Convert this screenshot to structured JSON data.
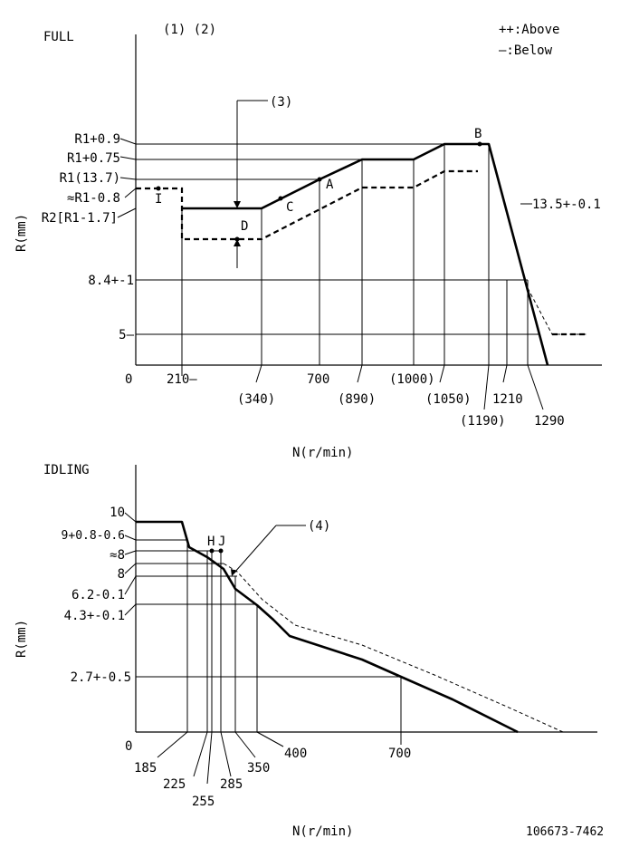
{
  "full": {
    "title": "FULL",
    "refs": "(1) (2)",
    "ref3": "(3)",
    "legend_above": "++:Above",
    "legend_below": "—:Below",
    "ylabel": "R(mm)",
    "xlabel": "N(r/min)",
    "y_labels": {
      "r1_09": "R1+0.9",
      "r1_075": "R1+0.75",
      "r1": "R1(13.7)",
      "r1_m08": "≈R1-0.8",
      "r2": "R2[R1-1.7]",
      "v84": "8.4+-1",
      "v5": "5—",
      "slope": "13.5+-0.1"
    },
    "x_labels": {
      "zero": "0",
      "x210": "210—",
      "x340": "(340)",
      "x700": "700",
      "x890": "(890)",
      "x1000": "(1000)",
      "x1050": "(1050)",
      "x1190": "(1190)",
      "x1210": "1210",
      "x1290": "1290"
    },
    "points": {
      "A": "A",
      "B": "B",
      "C": "C",
      "D": "D",
      "I": "I"
    }
  },
  "idling": {
    "title": "IDLING",
    "ref4": "(4)",
    "ylabel": "R(mm)",
    "xlabel": "N(r/min)",
    "y_labels": {
      "v10": "10",
      "v9": "9+0.8-0.6",
      "v8a": "≈8",
      "v8": "8",
      "v62": "6.2-0.1",
      "v43": "4.3+-0.1",
      "v27": "2.7+-0.5"
    },
    "x_labels": {
      "zero": "0",
      "x185": "185",
      "x225": "225",
      "x255": "255",
      "x285": "285",
      "x350": "350",
      "x400": "400",
      "x700": "700"
    },
    "points": {
      "H": "H",
      "J": "J"
    }
  },
  "footer": {
    "code": "106673-7462"
  }
}
